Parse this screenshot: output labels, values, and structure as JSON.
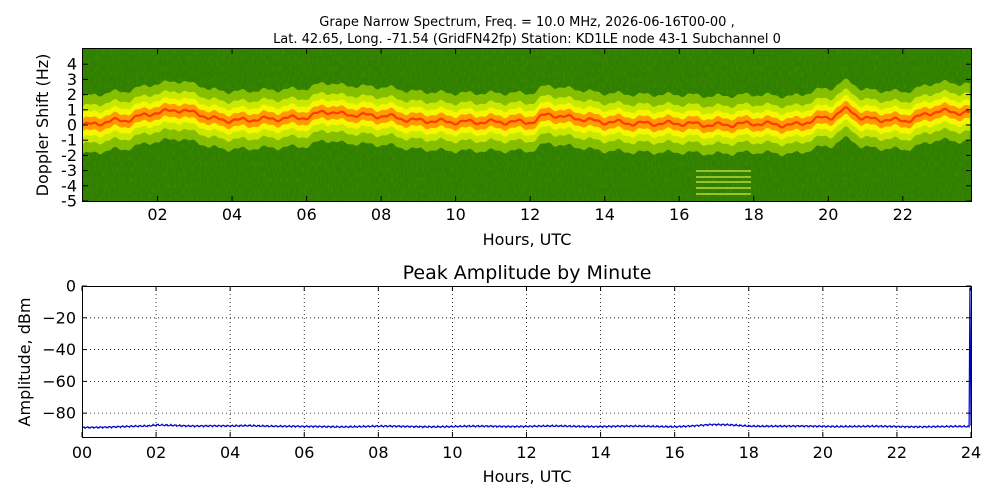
{
  "chart_data": [
    {
      "type": "heatmap",
      "title": "Grape Narrow Spectrum, Freq. = 10.0 MHz, 2026-06-16T00-00 ,",
      "subtitle": "Lat.  42.65, Long. -71.54 (GridFN42fp) Station: KD1LE node 43-1 Subchannel 0",
      "xlabel": "Hours, UTC",
      "ylabel": "Doppler Shift (Hz)",
      "xlim": [
        0,
        23.83
      ],
      "ylim": [
        -5,
        5
      ],
      "x_ticks": [
        2,
        4,
        6,
        8,
        10,
        12,
        14,
        16,
        18,
        20,
        22
      ],
      "x_tick_labels": [
        "02",
        "04",
        "06",
        "08",
        "10",
        "12",
        "14",
        "16",
        "18",
        "20",
        "22"
      ],
      "y_ticks": [
        -5,
        -4,
        -3,
        -2,
        -1,
        0,
        1,
        2,
        3,
        4
      ],
      "y_tick_labels": [
        "-5",
        "-4",
        "-3",
        "-2",
        "-1",
        "0",
        "1",
        "2",
        "3",
        "4"
      ],
      "colormap": [
        "#2e7d00",
        "#5aa800",
        "#c8e600",
        "#ffff00",
        "#ff9900",
        "#ff4d00"
      ],
      "carrier_doppler": {
        "hours": [
          0,
          1,
          2,
          2.5,
          3,
          3.5,
          4,
          5,
          6,
          6.5,
          7,
          8,
          9,
          10,
          11,
          12,
          12.5,
          13,
          14,
          15,
          16,
          17,
          18,
          19,
          20,
          20.5,
          21,
          22,
          23,
          23.8
        ],
        "hz": [
          0,
          0.3,
          0.8,
          1.0,
          0.8,
          0.4,
          0.3,
          0.4,
          0.5,
          0.9,
          0.7,
          0.6,
          0.3,
          0.2,
          0.2,
          0.2,
          0.7,
          0.5,
          0.2,
          0.1,
          0.1,
          0.0,
          0.1,
          0.0,
          0.5,
          1.0,
          0.4,
          0.3,
          0.9,
          0.8
        ]
      }
    },
    {
      "type": "line",
      "title": "Peak Amplitude by Minute",
      "xlabel": "Hours, UTC",
      "ylabel": "Amplitude, dBm",
      "xlim": [
        0,
        24
      ],
      "ylim": [
        -95,
        0
      ],
      "grid": true,
      "x_ticks": [
        0,
        2,
        4,
        6,
        8,
        10,
        12,
        14,
        16,
        18,
        20,
        22,
        24
      ],
      "x_tick_labels": [
        "00",
        "02",
        "04",
        "06",
        "08",
        "10",
        "12",
        "14",
        "16",
        "18",
        "20",
        "22",
        "24"
      ],
      "y_ticks": [
        0,
        -20,
        -40,
        -60,
        -80
      ],
      "y_tick_labels": [
        "0",
        "−20",
        "−40",
        "−60",
        "−80"
      ],
      "line_color": "#0000cc",
      "x": [
        0,
        1,
        1.8,
        2,
        2.5,
        3,
        4,
        4.5,
        5,
        6,
        7,
        8,
        9,
        10,
        11,
        12,
        13,
        14,
        15,
        16,
        16.5,
        17,
        17.5,
        18,
        19,
        20,
        21,
        22,
        23,
        23.95,
        23.97,
        24
      ],
      "y": [
        -89,
        -88.5,
        -88.2,
        -87.5,
        -87.6,
        -88,
        -88.2,
        -87.8,
        -88,
        -88.5,
        -88.5,
        -88.3,
        -88.4,
        -88.5,
        -88.2,
        -88.3,
        -88.2,
        -88.3,
        -88.3,
        -88.4,
        -88,
        -87.3,
        -87.4,
        -88,
        -88.3,
        -88.2,
        -88.4,
        -88.4,
        -88.5,
        -88.5,
        -1,
        -88
      ]
    }
  ]
}
